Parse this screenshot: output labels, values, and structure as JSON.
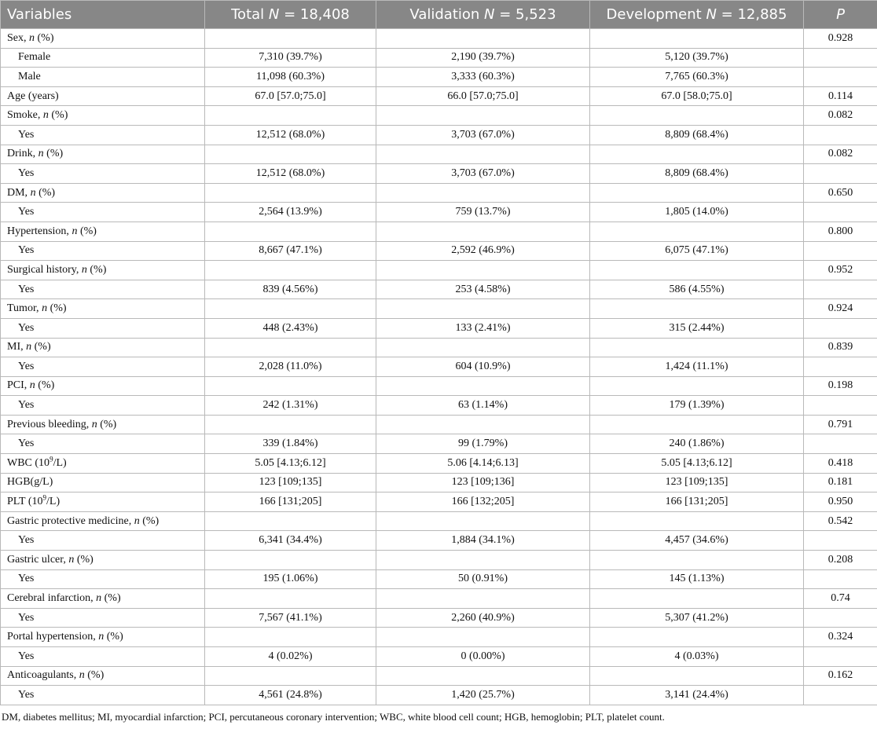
{
  "table": {
    "headers": [
      [
        [
          "Variables",
          ""
        ]
      ],
      [
        [
          "Total ",
          ""
        ],
        [
          "N",
          "i"
        ],
        [
          " = 18,408",
          ""
        ]
      ],
      [
        [
          "Validation ",
          ""
        ],
        [
          "N",
          "i"
        ],
        [
          " = 5,523",
          ""
        ]
      ],
      [
        [
          "Development ",
          ""
        ],
        [
          "N",
          "i"
        ],
        [
          " = 12,885",
          ""
        ]
      ],
      [
        [
          "P",
          "i"
        ]
      ]
    ],
    "rows": [
      {
        "label": [
          [
            "Sex, ",
            ""
          ],
          [
            "n",
            "i"
          ],
          [
            " (%)",
            ""
          ]
        ],
        "cells": [
          "",
          "",
          "",
          "0.928"
        ]
      },
      {
        "indent": true,
        "label": [
          [
            "Female",
            ""
          ]
        ],
        "cells": [
          "7,310 (39.7%)",
          "2,190 (39.7%)",
          "5,120 (39.7%)",
          ""
        ]
      },
      {
        "indent": true,
        "label": [
          [
            "Male",
            ""
          ]
        ],
        "cells": [
          "11,098 (60.3%)",
          "3,333 (60.3%)",
          "7,765 (60.3%)",
          ""
        ]
      },
      {
        "label": [
          [
            "Age (years)",
            ""
          ]
        ],
        "cells": [
          "67.0 [57.0;75.0]",
          "66.0 [57.0;75.0]",
          "67.0 [58.0;75.0]",
          "0.114"
        ]
      },
      {
        "label": [
          [
            "Smoke, ",
            ""
          ],
          [
            "n",
            "i"
          ],
          [
            " (%)",
            ""
          ]
        ],
        "cells": [
          "",
          "",
          "",
          "0.082"
        ]
      },
      {
        "indent": true,
        "label": [
          [
            "Yes",
            ""
          ]
        ],
        "cells": [
          "12,512 (68.0%)",
          "3,703 (67.0%)",
          "8,809 (68.4%)",
          ""
        ]
      },
      {
        "label": [
          [
            "Drink, ",
            ""
          ],
          [
            "n",
            "i"
          ],
          [
            " (%)",
            ""
          ]
        ],
        "cells": [
          "",
          "",
          "",
          "0.082"
        ]
      },
      {
        "indent": true,
        "label": [
          [
            "Yes",
            ""
          ]
        ],
        "cells": [
          "12,512 (68.0%)",
          "3,703 (67.0%)",
          "8,809 (68.4%)",
          ""
        ]
      },
      {
        "label": [
          [
            "DM, ",
            ""
          ],
          [
            "n",
            "i"
          ],
          [
            " (%)",
            ""
          ]
        ],
        "cells": [
          "",
          "",
          "",
          "0.650"
        ]
      },
      {
        "indent": true,
        "label": [
          [
            "Yes",
            ""
          ]
        ],
        "cells": [
          "2,564 (13.9%)",
          "759 (13.7%)",
          "1,805 (14.0%)",
          ""
        ]
      },
      {
        "label": [
          [
            "Hypertension, ",
            ""
          ],
          [
            "n",
            "i"
          ],
          [
            " (%)",
            ""
          ]
        ],
        "cells": [
          "",
          "",
          "",
          "0.800"
        ]
      },
      {
        "indent": true,
        "label": [
          [
            "Yes",
            ""
          ]
        ],
        "cells": [
          "8,667 (47.1%)",
          "2,592 (46.9%)",
          "6,075 (47.1%)",
          ""
        ]
      },
      {
        "label": [
          [
            "Surgical history, ",
            ""
          ],
          [
            "n",
            "i"
          ],
          [
            " (%)",
            ""
          ]
        ],
        "cells": [
          "",
          "",
          "",
          "0.952"
        ]
      },
      {
        "indent": true,
        "label": [
          [
            "Yes",
            ""
          ]
        ],
        "cells": [
          "839 (4.56%)",
          "253 (4.58%)",
          "586 (4.55%)",
          ""
        ]
      },
      {
        "label": [
          [
            "Tumor, ",
            ""
          ],
          [
            "n",
            "i"
          ],
          [
            " (%)",
            ""
          ]
        ],
        "cells": [
          "",
          "",
          "",
          "0.924"
        ]
      },
      {
        "indent": true,
        "label": [
          [
            "Yes",
            ""
          ]
        ],
        "cells": [
          "448 (2.43%)",
          "133 (2.41%)",
          "315 (2.44%)",
          ""
        ]
      },
      {
        "label": [
          [
            "MI, ",
            ""
          ],
          [
            "n",
            "i"
          ],
          [
            " (%)",
            ""
          ]
        ],
        "cells": [
          "",
          "",
          "",
          "0.839"
        ]
      },
      {
        "indent": true,
        "label": [
          [
            "Yes",
            ""
          ]
        ],
        "cells": [
          "2,028 (11.0%)",
          "604 (10.9%)",
          "1,424 (11.1%)",
          ""
        ]
      },
      {
        "label": [
          [
            "PCI, ",
            ""
          ],
          [
            "n",
            "i"
          ],
          [
            " (%)",
            ""
          ]
        ],
        "cells": [
          "",
          "",
          "",
          "0.198"
        ]
      },
      {
        "indent": true,
        "label": [
          [
            "Yes",
            ""
          ]
        ],
        "cells": [
          "242 (1.31%)",
          "63 (1.14%)",
          "179 (1.39%)",
          ""
        ]
      },
      {
        "label": [
          [
            "Previous bleeding, ",
            ""
          ],
          [
            "n",
            "i"
          ],
          [
            " (%)",
            ""
          ]
        ],
        "cells": [
          "",
          "",
          "",
          "0.791"
        ]
      },
      {
        "indent": true,
        "label": [
          [
            "Yes",
            ""
          ]
        ],
        "cells": [
          "339 (1.84%)",
          "99 (1.79%)",
          "240 (1.86%)",
          ""
        ]
      },
      {
        "label": [
          [
            "WBC (10",
            ""
          ],
          [
            "9",
            "s"
          ],
          [
            "/L)",
            ""
          ]
        ],
        "cells": [
          "5.05 [4.13;6.12]",
          "5.06 [4.14;6.13]",
          "5.05 [4.13;6.12]",
          "0.418"
        ]
      },
      {
        "label": [
          [
            "HGB(g/L)",
            ""
          ]
        ],
        "cells": [
          "123 [109;135]",
          "123 [109;136]",
          "123 [109;135]",
          "0.181"
        ]
      },
      {
        "label": [
          [
            "PLT (10",
            ""
          ],
          [
            "9",
            "s"
          ],
          [
            "/L)",
            ""
          ]
        ],
        "cells": [
          "166 [131;205]",
          "166 [132;205]",
          "166 [131;205]",
          "0.950"
        ]
      },
      {
        "label": [
          [
            "Gastric protective medicine, ",
            ""
          ],
          [
            "n",
            "i"
          ],
          [
            " (%)",
            ""
          ]
        ],
        "cells": [
          "",
          "",
          "",
          "0.542"
        ]
      },
      {
        "indent": true,
        "label": [
          [
            "Yes",
            ""
          ]
        ],
        "cells": [
          "6,341 (34.4%)",
          "1,884 (34.1%)",
          "4,457 (34.6%)",
          ""
        ]
      },
      {
        "label": [
          [
            "Gastric ulcer, ",
            ""
          ],
          [
            "n",
            "i"
          ],
          [
            " (%)",
            ""
          ]
        ],
        "cells": [
          "",
          "",
          "",
          "0.208"
        ]
      },
      {
        "indent": true,
        "label": [
          [
            "Yes",
            ""
          ]
        ],
        "cells": [
          "195 (1.06%)",
          "50 (0.91%)",
          "145 (1.13%)",
          ""
        ]
      },
      {
        "label": [
          [
            "Cerebral infarction, ",
            ""
          ],
          [
            "n",
            "i"
          ],
          [
            " (%)",
            ""
          ]
        ],
        "cells": [
          "",
          "",
          "",
          "0.74"
        ]
      },
      {
        "indent": true,
        "label": [
          [
            "Yes",
            ""
          ]
        ],
        "cells": [
          "7,567 (41.1%)",
          "2,260 (40.9%)",
          "5,307 (41.2%)",
          ""
        ]
      },
      {
        "label": [
          [
            "Portal hypertension, ",
            ""
          ],
          [
            "n",
            "i"
          ],
          [
            " (%)",
            ""
          ]
        ],
        "cells": [
          "",
          "",
          "",
          "0.324"
        ]
      },
      {
        "indent": true,
        "label": [
          [
            "Yes",
            ""
          ]
        ],
        "cells": [
          "4 (0.02%)",
          "0 (0.00%)",
          "4 (0.03%)",
          ""
        ]
      },
      {
        "label": [
          [
            "Anticoagulants, ",
            ""
          ],
          [
            "n",
            "i"
          ],
          [
            " (%)",
            ""
          ]
        ],
        "cells": [
          "",
          "",
          "",
          "0.162"
        ]
      },
      {
        "indent": true,
        "label": [
          [
            "Yes",
            ""
          ]
        ],
        "cells": [
          "4,561 (24.8%)",
          "1,420 (25.7%)",
          "3,141 (24.4%)",
          ""
        ]
      }
    ]
  },
  "footnote": "DM, diabetes mellitus; MI, myocardial infarction; PCI, percutaneous coronary intervention; WBC, white blood cell count; HGB, hemoglobin; PLT, platelet count.",
  "colors": {
    "header_bg": "#878787",
    "header_text": "#ffffff",
    "border": "#b9b9b9"
  }
}
